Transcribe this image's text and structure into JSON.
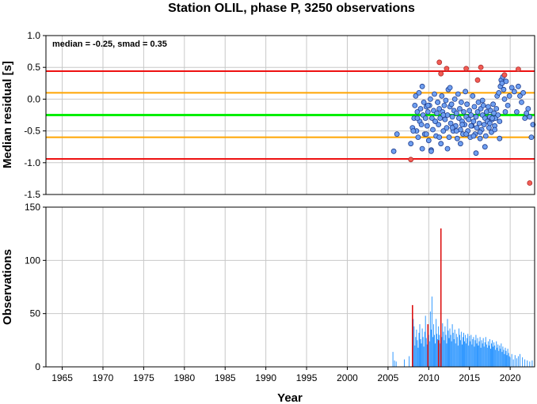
{
  "colors": {
    "background": "#ffffff",
    "frame": "#000000",
    "grid": "#c8c8c8",
    "median_line": "#00ee00",
    "smad_line": "#ffa500",
    "limit_line": "#ee1111",
    "point_fill": "#6f9ff0",
    "point_stroke": "#1e3c8c",
    "outlier_fill": "#f25c54",
    "outlier_stroke": "#b03030",
    "bar": "#3399ff",
    "bar_highlight": "#dd1111"
  },
  "chart_data": [
    {
      "type": "scatter",
      "title": "Station OLIL, phase P, 3250 observations",
      "ylabel": "Median residual [s]",
      "annotation": "median = -0.25, smad = 0.35",
      "xlim": [
        1963.0,
        2023.0
      ],
      "ylim": [
        -1.5,
        1.0
      ],
      "yticks": [
        1.0,
        0.5,
        0.0,
        -0.5,
        -1.0,
        -1.5
      ],
      "ytick_labels": [
        "1.0",
        "0.5",
        "0.0",
        "-0.5",
        "-1.0",
        "-1.5"
      ],
      "grid": true,
      "hlines": [
        {
          "role": "median",
          "y": -0.25
        },
        {
          "role": "smad",
          "y": 0.1
        },
        {
          "role": "smad",
          "y": -0.6
        },
        {
          "role": "limit",
          "y": 0.44
        },
        {
          "role": "limit",
          "y": -0.94
        }
      ],
      "series": [
        {
          "role": "inliers",
          "x": [
            2005.7,
            2006.1,
            2007.8,
            2008.0,
            2008.2,
            2008.3,
            2008.4,
            2008.5,
            2008.6,
            2008.7,
            2008.8,
            2008.9,
            2009.0,
            2009.1,
            2009.2,
            2009.3,
            2009.4,
            2009.5,
            2009.6,
            2009.7,
            2009.8,
            2009.9,
            2010.0,
            2010.1,
            2010.2,
            2010.3,
            2010.4,
            2010.5,
            2010.6,
            2010.7,
            2010.8,
            2010.9,
            2011.0,
            2011.1,
            2011.2,
            2011.3,
            2011.4,
            2011.5,
            2011.6,
            2011.7,
            2011.8,
            2011.9,
            2012.0,
            2012.1,
            2012.2,
            2012.3,
            2012.4,
            2012.5,
            2012.6,
            2012.7,
            2012.8,
            2012.9,
            2013.0,
            2013.1,
            2013.2,
            2013.3,
            2013.4,
            2013.5,
            2013.6,
            2013.7,
            2013.8,
            2013.9,
            2014.0,
            2014.1,
            2014.2,
            2014.3,
            2014.4,
            2014.5,
            2014.6,
            2014.7,
            2014.8,
            2014.9,
            2015.0,
            2015.1,
            2015.2,
            2015.3,
            2015.4,
            2015.5,
            2015.6,
            2015.7,
            2015.8,
            2015.9,
            2016.0,
            2016.1,
            2016.2,
            2016.3,
            2016.4,
            2016.5,
            2016.6,
            2016.7,
            2016.8,
            2016.9,
            2017.0,
            2017.1,
            2017.2,
            2017.3,
            2017.4,
            2017.5,
            2017.6,
            2017.7,
            2017.8,
            2017.9,
            2018.0,
            2018.1,
            2018.2,
            2018.3,
            2018.4,
            2018.5,
            2018.6,
            2018.7,
            2018.8,
            2018.9,
            2019.0,
            2019.1,
            2019.2,
            2019.3,
            2019.5,
            2019.7,
            2019.9,
            2020.2,
            2020.5,
            2020.8,
            2021.0,
            2021.2,
            2021.4,
            2021.6,
            2021.8,
            2022.0,
            2022.2,
            2022.4,
            2022.6,
            2022.8,
            2008.1,
            2008.6,
            2009.2,
            2009.7,
            2010.3,
            2010.8,
            2011.3,
            2011.8,
            2012.3,
            2012.9,
            2013.4,
            2013.9,
            2014.6,
            2015.2,
            2015.8,
            2016.3,
            2016.9,
            2017.5,
            2018.1,
            2018.7,
            2009.9,
            2011.1,
            2012.6,
            2014.1,
            2015.5,
            2016.6,
            2017.8,
            2019.4
          ],
          "y": [
            -0.82,
            -0.55,
            -0.7,
            -0.45,
            -0.3,
            -0.1,
            0.05,
            -0.5,
            -0.2,
            -0.6,
            0.1,
            -0.35,
            -0.15,
            -0.4,
            0.2,
            -0.25,
            -0.05,
            -0.55,
            -0.3,
            -0.12,
            -0.42,
            -0.2,
            -0.65,
            -0.1,
            0.0,
            -0.8,
            -0.3,
            -0.48,
            -0.18,
            0.08,
            -0.35,
            -0.58,
            -0.22,
            -0.05,
            -0.4,
            -0.15,
            -0.3,
            -0.7,
            0.05,
            -0.2,
            -0.5,
            -0.1,
            -0.32,
            -0.02,
            -0.45,
            -0.25,
            0.15,
            -0.6,
            -0.12,
            -0.38,
            -0.08,
            -0.28,
            -0.5,
            -0.18,
            0.0,
            -0.42,
            -0.22,
            -0.62,
            0.08,
            -0.3,
            -0.15,
            -0.48,
            -0.05,
            -0.35,
            -0.55,
            -0.2,
            -0.4,
            0.12,
            -0.28,
            -0.08,
            -0.5,
            -0.32,
            -0.18,
            -0.6,
            -0.25,
            -0.42,
            0.05,
            -0.35,
            -0.12,
            -0.55,
            -0.28,
            -0.45,
            -0.2,
            -0.05,
            -0.38,
            -0.62,
            -0.15,
            -0.48,
            -0.25,
            -0.1,
            -0.4,
            -0.3,
            -0.58,
            -0.2,
            -0.35,
            -0.12,
            -0.45,
            -0.28,
            -0.18,
            -0.52,
            -0.32,
            -0.08,
            -0.22,
            -0.42,
            -0.3,
            -0.15,
            0.05,
            -0.25,
            0.1,
            -0.35,
            0.2,
            0.3,
            0.25,
            0.35,
            0.15,
            0.0,
            0.28,
            -0.1,
            0.05,
            0.18,
            0.12,
            -0.2,
            0.2,
            0.05,
            -0.05,
            0.1,
            -0.3,
            -0.22,
            -0.15,
            -0.28,
            -0.6,
            -0.4,
            -0.5,
            -0.3,
            -0.78,
            -0.55,
            -0.82,
            -0.35,
            -0.6,
            -0.25,
            -0.78,
            -0.45,
            -0.5,
            -0.7,
            -0.55,
            -0.42,
            -0.85,
            -0.52,
            -0.75,
            -0.38,
            -0.48,
            -0.62,
            -0.1,
            -0.05,
            0.18,
            -0.4,
            -0.58,
            -0.02,
            -0.3,
            -0.2
          ]
        },
        {
          "role": "outliers",
          "x": [
            2007.8,
            2011.3,
            2011.5,
            2012.2,
            2014.6,
            2016.0,
            2016.4,
            2019.3,
            2021.0,
            2022.4
          ],
          "y": [
            -0.95,
            0.58,
            0.4,
            0.48,
            0.48,
            0.3,
            0.5,
            0.38,
            0.47,
            -1.32
          ]
        }
      ]
    },
    {
      "type": "bar",
      "xlabel": "Year",
      "ylabel": "Observations",
      "xlim": [
        1963.0,
        2023.0
      ],
      "ylim": [
        0,
        150
      ],
      "xticks": [
        1965,
        1970,
        1975,
        1980,
        1985,
        1990,
        1995,
        2000,
        2005,
        2010,
        2015,
        2020
      ],
      "xtick_labels": [
        "1965",
        "1970",
        "1975",
        "1980",
        "1985",
        "1990",
        "1995",
        "2000",
        "2005",
        "2010",
        "2015",
        "2020"
      ],
      "yticks": [
        0,
        50,
        100,
        150
      ],
      "ytick_labels": [
        "0",
        "50",
        "100",
        "150"
      ],
      "grid": true,
      "bin_width": 0.1,
      "series": [
        {
          "role": "counts",
          "x": [
            2005.6,
            2005.8,
            2006.0,
            2007.0,
            2007.6,
            2008.0,
            2008.1,
            2008.2,
            2008.3,
            2008.4,
            2008.5,
            2008.6,
            2008.7,
            2008.8,
            2008.9,
            2009.0,
            2009.1,
            2009.2,
            2009.3,
            2009.4,
            2009.5,
            2009.6,
            2009.7,
            2009.8,
            2009.9,
            2010.0,
            2010.1,
            2010.2,
            2010.3,
            2010.4,
            2010.5,
            2010.6,
            2010.7,
            2010.8,
            2010.9,
            2011.0,
            2011.1,
            2011.2,
            2011.3,
            2011.4,
            2011.5,
            2011.6,
            2011.7,
            2011.8,
            2011.9,
            2012.0,
            2012.1,
            2012.2,
            2012.3,
            2012.4,
            2012.5,
            2012.6,
            2012.7,
            2012.8,
            2012.9,
            2013.0,
            2013.1,
            2013.2,
            2013.3,
            2013.4,
            2013.5,
            2013.6,
            2013.7,
            2013.8,
            2013.9,
            2014.0,
            2014.1,
            2014.2,
            2014.3,
            2014.4,
            2014.5,
            2014.6,
            2014.7,
            2014.8,
            2014.9,
            2015.0,
            2015.1,
            2015.2,
            2015.3,
            2015.4,
            2015.5,
            2015.6,
            2015.7,
            2015.8,
            2015.9,
            2016.0,
            2016.1,
            2016.2,
            2016.3,
            2016.4,
            2016.5,
            2016.6,
            2016.7,
            2016.8,
            2016.9,
            2017.0,
            2017.1,
            2017.2,
            2017.3,
            2017.4,
            2017.5,
            2017.6,
            2017.7,
            2017.8,
            2017.9,
            2018.0,
            2018.1,
            2018.2,
            2018.3,
            2018.4,
            2018.5,
            2018.6,
            2018.7,
            2018.8,
            2018.9,
            2019.0,
            2019.1,
            2019.2,
            2019.3,
            2019.4,
            2019.5,
            2019.6,
            2019.7,
            2019.8,
            2019.9,
            2020.0,
            2020.2,
            2020.4,
            2020.6,
            2020.8,
            2021.0,
            2021.2,
            2021.5,
            2021.8,
            2022.1,
            2022.4,
            2022.7
          ],
          "values": [
            14,
            6,
            5,
            7,
            10,
            30,
            45,
            38,
            20,
            28,
            35,
            25,
            18,
            32,
            40,
            26,
            22,
            36,
            28,
            19,
            33,
            48,
            27,
            21,
            38,
            30,
            24,
            52,
            35,
            66,
            28,
            40,
            30,
            22,
            45,
            31,
            26,
            38,
            30,
            22,
            36,
            28,
            41,
            33,
            25,
            38,
            30,
            22,
            45,
            34,
            27,
            36,
            30,
            24,
            40,
            32,
            26,
            35,
            22,
            31,
            28,
            20,
            36,
            30,
            25,
            33,
            21,
            28,
            32,
            24,
            30,
            22,
            27,
            31,
            20,
            29,
            24,
            30,
            21,
            26,
            28,
            19,
            25,
            30,
            22,
            27,
            20,
            24,
            28,
            18,
            25,
            22,
            27,
            19,
            23,
            28,
            21,
            18,
            24,
            20,
            26,
            17,
            22,
            25,
            19,
            23,
            20,
            16,
            24,
            18,
            21,
            15,
            20,
            17,
            22,
            14,
            19,
            16,
            12,
            18,
            15,
            11,
            17,
            13,
            10,
            9,
            12,
            7,
            11,
            8,
            10,
            12,
            9,
            7,
            6,
            5,
            6
          ]
        },
        {
          "role": "highlight",
          "x": [
            2008.0,
            2009.9,
            2011.2,
            2011.5
          ],
          "values": [
            58,
            40,
            25,
            130
          ]
        }
      ]
    }
  ]
}
